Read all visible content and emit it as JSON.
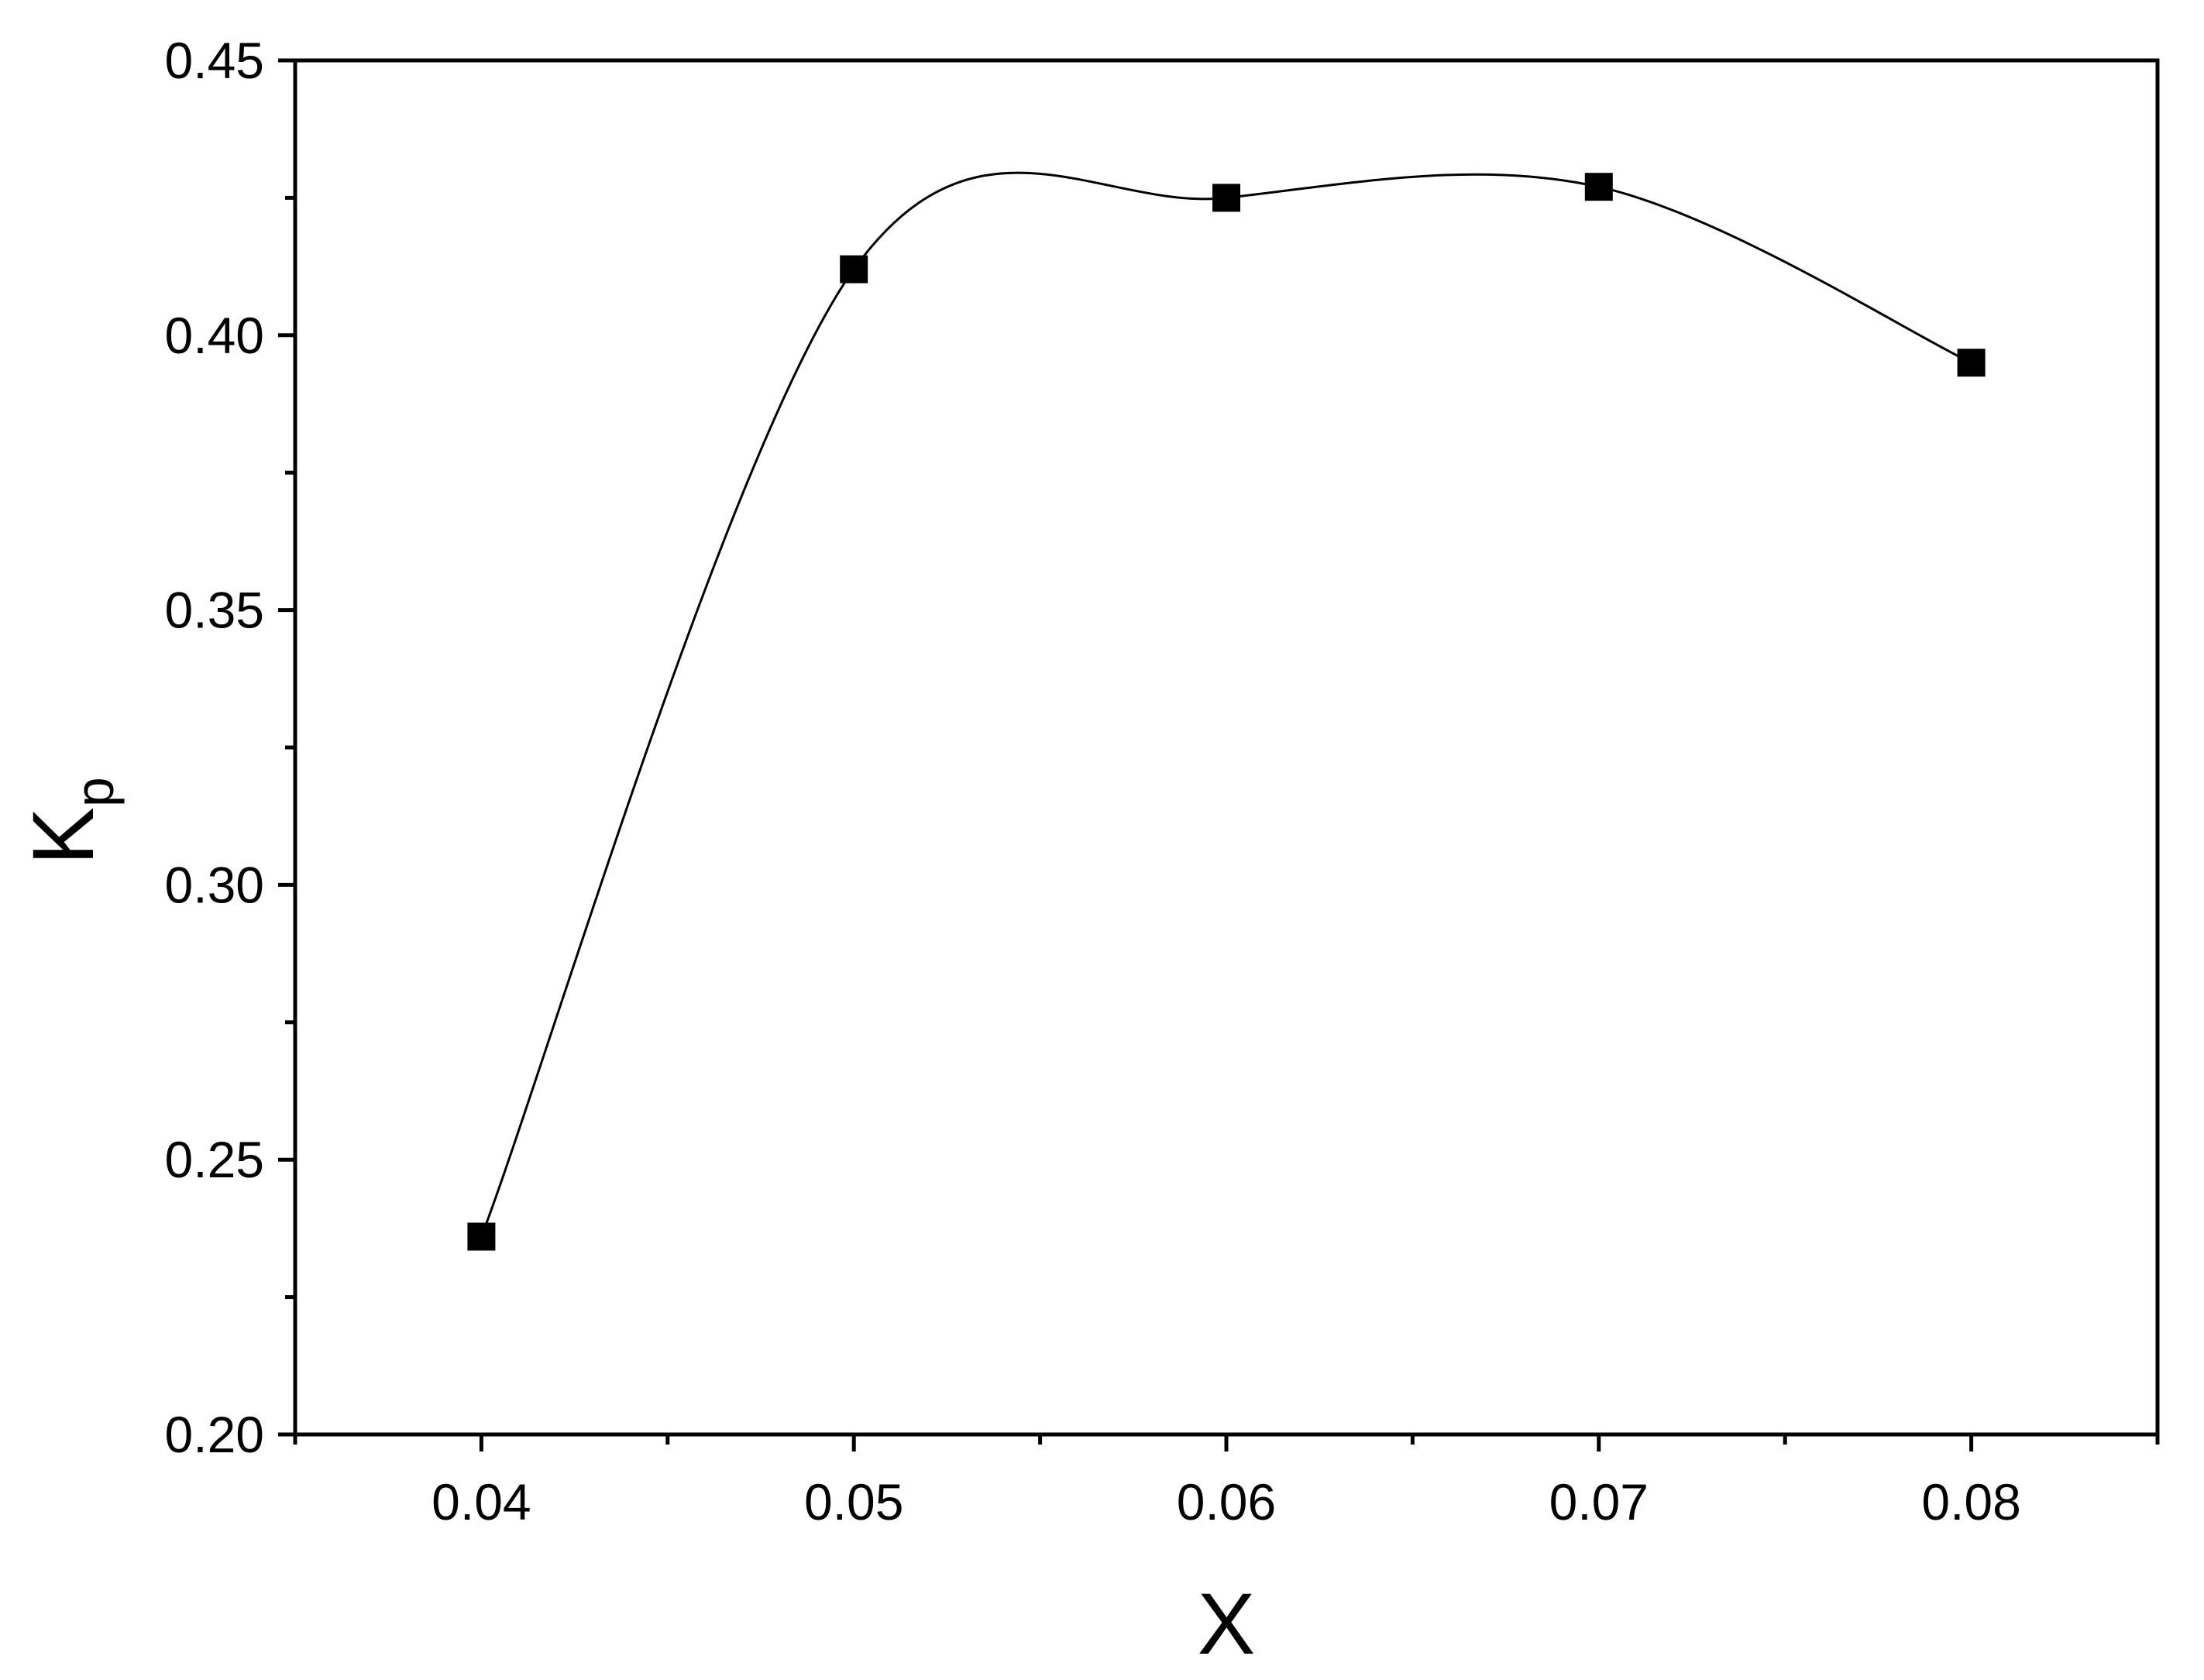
{
  "chart_data": {
    "type": "line",
    "xlabel": "X",
    "ylabel": "K",
    "ylabel_subscript": "p",
    "x": [
      0.04,
      0.05,
      0.06,
      0.07,
      0.08
    ],
    "series": [
      {
        "values": [
          0.236,
          0.412,
          0.425,
          0.427,
          0.395
        ],
        "color": "#000000",
        "marker": "square",
        "smooth": true
      }
    ],
    "xlim": [
      0.035,
      0.085
    ],
    "xticks": [
      0.04,
      0.05,
      0.06,
      0.07,
      0.08
    ],
    "xminorticks": [
      0.035,
      0.045,
      0.055,
      0.065,
      0.075,
      0.085
    ],
    "ylim": [
      0.2,
      0.45
    ],
    "yticks": [
      {
        "value": 0.2,
        "label": "0.20"
      },
      {
        "value": 0.25,
        "label": "0.25"
      },
      {
        "value": 0.3,
        "label": "0.30"
      },
      {
        "value": 0.35,
        "label": "0.35"
      },
      {
        "value": 0.4,
        "label": "0.40"
      },
      {
        "value": 0.45,
        "label": "0.45"
      }
    ],
    "yminorticks": [
      0.225,
      0.275,
      0.325,
      0.375,
      0.425
    ],
    "grid": false
  }
}
